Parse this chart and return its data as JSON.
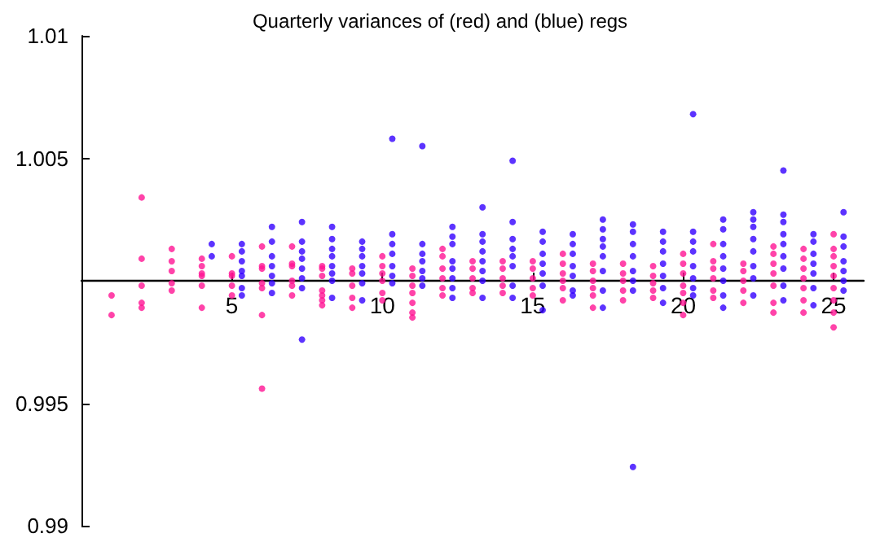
{
  "chart_data": {
    "type": "scatter",
    "title": "Quarterly variances of (red) and (blue) regs",
    "xlim": [
      0,
      26
    ],
    "xticks": [
      5,
      10,
      15,
      20,
      25
    ],
    "ylim": [
      0.99,
      1.01
    ],
    "yticks": [
      0.99,
      0.995,
      {
        "value": 1,
        "label": null
      },
      1.005,
      1.01
    ],
    "grid": false,
    "marker": "circle",
    "series": [
      {
        "color": "#ff1493",
        "x": [
          1,
          1,
          2,
          2,
          2,
          2,
          2,
          3,
          3,
          3,
          3,
          3,
          4,
          4,
          4,
          4,
          4,
          4,
          5,
          5,
          5,
          5,
          5,
          6,
          6,
          6,
          6,
          6,
          6,
          6,
          7,
          7,
          7,
          7,
          7,
          7,
          8,
          8,
          8,
          8,
          8,
          8,
          8,
          9,
          9,
          9,
          9,
          9,
          10,
          10,
          10,
          10,
          10,
          10,
          11,
          11,
          11,
          11,
          11,
          11,
          11,
          12,
          12,
          12,
          12,
          12,
          12,
          13,
          13,
          13,
          13,
          13,
          14,
          14,
          14,
          14,
          14,
          15,
          15,
          15,
          15,
          15,
          16,
          16,
          16,
          16,
          16,
          16,
          17,
          17,
          17,
          17,
          17,
          17,
          18,
          18,
          18,
          18,
          18,
          19,
          19,
          19,
          19,
          19,
          20,
          20,
          20,
          20,
          20,
          20,
          20,
          21,
          21,
          21,
          21,
          21,
          21,
          22,
          22,
          22,
          22,
          22,
          23,
          23,
          23,
          23,
          23,
          23,
          23,
          24,
          24,
          24,
          24,
          24,
          24,
          24,
          25,
          25,
          25,
          25,
          25,
          25,
          25,
          25,
          25
        ],
        "values": [
          0.9994,
          0.9986,
          1.0034,
          1.0009,
          0.9998,
          0.9991,
          0.9989,
          1.0013,
          1.0008,
          1.0004,
          0.9999,
          0.9996,
          1.0009,
          1.0006,
          1.0003,
          1.0002,
          0.9998,
          0.9989,
          1.001,
          1.0003,
          1.0002,
          0.9998,
          0.9994,
          1.0014,
          1.0006,
          1.0005,
          0.9999,
          0.9997,
          0.9986,
          0.9956,
          1.0014,
          1.0007,
          1.0006,
          1.0,
          0.9998,
          0.9994,
          1.0006,
          1.0005,
          1.0002,
          0.9996,
          0.9994,
          0.9992,
          0.999,
          1.0005,
          1.0003,
          0.9998,
          0.9993,
          0.9989,
          1.001,
          1.0006,
          1.0003,
          1.0,
          0.9995,
          0.9992,
          1.0005,
          1.0002,
          0.9998,
          0.9995,
          0.9991,
          0.9987,
          0.9985,
          1.0013,
          1.001,
          1.0005,
          1.0001,
          0.9997,
          0.9994,
          1.0008,
          1.0005,
          1.0001,
          0.9997,
          0.9995,
          1.0008,
          1.0005,
          1.0001,
          0.9998,
          0.9995,
          1.0008,
          1.0005,
          1.0001,
          0.9997,
          0.9994,
          1.0011,
          1.0007,
          1.0003,
          1.0,
          0.9997,
          0.9992,
          1.0007,
          1.0004,
          1.0,
          0.9997,
          0.9994,
          0.9989,
          1.0007,
          1.0003,
          1.0,
          0.9996,
          0.9992,
          1.0006,
          1.0002,
          0.9999,
          0.9996,
          0.9993,
          1.0011,
          1.0007,
          1.0003,
          0.9998,
          0.9995,
          0.9991,
          0.9986,
          1.0015,
          1.0008,
          1.0005,
          1.0001,
          0.9996,
          0.9993,
          1.0007,
          1.0004,
          1.0,
          0.9996,
          0.9991,
          1.0014,
          1.0011,
          1.0007,
          1.0003,
          0.9998,
          0.9991,
          0.9987,
          1.0013,
          1.0009,
          1.0005,
          1.0001,
          0.9997,
          0.9992,
          0.9987,
          1.0019,
          1.0013,
          1.001,
          1.0006,
          1.0002,
          0.9997,
          0.9992,
          0.9987,
          0.9981
        ]
      },
      {
        "color": "#3300ff",
        "x": [
          4.33,
          4.33,
          5.33,
          5.33,
          5.33,
          5.33,
          5.33,
          5.33,
          5.33,
          6.33,
          6.33,
          6.33,
          6.33,
          6.33,
          6.33,
          6.33,
          7.33,
          7.33,
          7.33,
          7.33,
          7.33,
          7.33,
          7.33,
          7.33,
          8.33,
          8.33,
          8.33,
          8.33,
          8.33,
          8.33,
          8.33,
          8.33,
          9.33,
          9.33,
          9.33,
          9.33,
          9.33,
          9.33,
          9.33,
          10.33,
          10.33,
          10.33,
          10.33,
          10.33,
          10.33,
          10.33,
          11.33,
          11.33,
          11.33,
          11.33,
          11.33,
          11.33,
          11.33,
          12.33,
          12.33,
          12.33,
          12.33,
          12.33,
          12.33,
          12.33,
          12.33,
          13.33,
          13.33,
          13.33,
          13.33,
          13.33,
          13.33,
          13.33,
          13.33,
          14.33,
          14.33,
          14.33,
          14.33,
          14.33,
          14.33,
          14.33,
          14.33,
          15.33,
          15.33,
          15.33,
          15.33,
          15.33,
          15.33,
          15.33,
          16.33,
          16.33,
          16.33,
          16.33,
          16.33,
          16.33,
          16.33,
          17.33,
          17.33,
          17.33,
          17.33,
          17.33,
          17.33,
          17.33,
          17.33,
          18.33,
          18.33,
          18.33,
          18.33,
          18.33,
          18.33,
          18.33,
          18.33,
          19.33,
          19.33,
          19.33,
          19.33,
          19.33,
          19.33,
          19.33,
          20.33,
          20.33,
          20.33,
          20.33,
          20.33,
          20.33,
          20.33,
          20.33,
          21.33,
          21.33,
          21.33,
          21.33,
          21.33,
          21.33,
          21.33,
          21.33,
          22.33,
          22.33,
          22.33,
          22.33,
          22.33,
          22.33,
          22.33,
          22.33,
          23.33,
          23.33,
          23.33,
          23.33,
          23.33,
          23.33,
          23.33,
          23.33,
          23.33,
          24.33,
          24.33,
          24.33,
          24.33,
          24.33,
          24.33,
          24.33,
          25.33,
          25.33,
          25.33,
          25.33,
          25.33,
          25.33,
          25.33
        ],
        "values": [
          1.0015,
          1.001,
          1.0015,
          1.0012,
          1.0008,
          1.0004,
          1.0002,
          0.9997,
          0.9994,
          1.0022,
          1.0016,
          1.001,
          1.0006,
          1.0002,
          0.9999,
          0.9995,
          1.0024,
          1.0016,
          1.0012,
          1.0009,
          1.0005,
          1.0001,
          0.9997,
          0.9976,
          1.0022,
          1.0017,
          1.0013,
          1.001,
          1.0006,
          1.0003,
          1.0,
          0.9993,
          1.0016,
          1.0013,
          1.001,
          1.0006,
          1.0003,
          0.9999,
          0.9992,
          1.0058,
          1.0019,
          1.0015,
          1.0011,
          1.0006,
          1.0002,
          0.9999,
          1.0055,
          1.0015,
          1.0011,
          1.0008,
          1.0004,
          1.0001,
          0.9998,
          1.0022,
          1.0018,
          1.0015,
          1.0008,
          1.0005,
          1.0001,
          0.9997,
          0.9993,
          1.003,
          1.0019,
          1.0016,
          1.0012,
          1.0008,
          1.0004,
          1.0,
          0.9993,
          1.0049,
          1.0024,
          1.0017,
          1.0013,
          1.001,
          1.0006,
          0.9998,
          0.9993,
          1.002,
          1.0016,
          1.0011,
          1.0007,
          1.0003,
          0.9998,
          0.9988,
          1.0019,
          1.0015,
          1.0011,
          1.0006,
          1.0002,
          0.9996,
          0.9994,
          1.0025,
          1.0021,
          1.0017,
          1.0014,
          1.001,
          1.0004,
          0.9996,
          0.9989,
          1.0023,
          1.002,
          1.0015,
          1.001,
          1.0004,
          1.0,
          0.9996,
          0.9924,
          1.002,
          1.0016,
          1.0012,
          1.0007,
          1.0002,
          0.9997,
          0.9991,
          1.0068,
          1.002,
          1.0016,
          1.0012,
          1.0006,
          1.0001,
          0.9997,
          0.9994,
          1.0025,
          1.0021,
          1.0015,
          1.001,
          1.0005,
          1.0,
          0.9994,
          0.9989,
          1.0028,
          1.0025,
          1.0022,
          1.0017,
          1.0012,
          1.0006,
          1.0001,
          0.9994,
          1.0045,
          1.0027,
          1.0024,
          1.0019,
          1.0015,
          1.001,
          1.0005,
          0.9998,
          0.9992,
          1.0019,
          1.0016,
          1.0011,
          1.0007,
          1.0003,
          0.9997,
          0.999,
          1.0028,
          1.0018,
          1.0014,
          1.0008,
          1.0004,
          1.0,
          0.9996
        ]
      }
    ]
  }
}
